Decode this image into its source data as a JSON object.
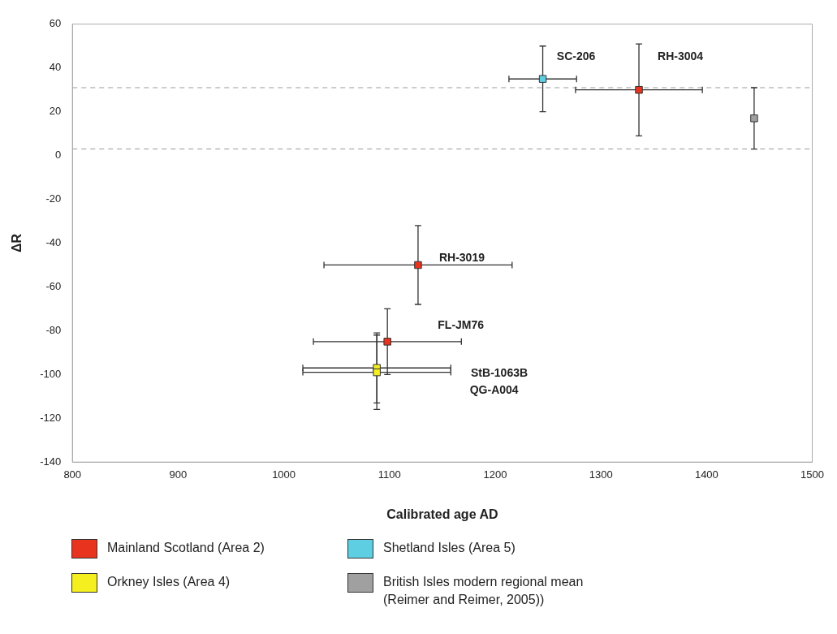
{
  "chart_data": {
    "type": "scatter",
    "xlabel": "Calibrated age AD",
    "ylabel": "ΔR",
    "xlim": [
      800,
      1500
    ],
    "xticks": [
      800,
      900,
      1000,
      1100,
      1200,
      1300,
      1400,
      1500
    ],
    "ylim": [
      -140,
      60
    ],
    "yticks": [
      -140,
      -120,
      -100,
      -80,
      -60,
      -40,
      -20,
      0,
      20,
      40,
      60
    ],
    "grid": false,
    "legend": "bottom",
    "marker": "square",
    "series": [
      {
        "name": "Mainland Scotland (Area 2)",
        "color": "#e8331f",
        "x": [
          1336,
          1127,
          1098
        ],
        "values": [
          30,
          -50,
          -85
        ],
        "errors": [
          21,
          18,
          15
        ],
        "xerrors": [
          60,
          89,
          70
        ]
      },
      {
        "name": "Shetland Isles (Area 5)",
        "color": "#5ecfe3",
        "x": [
          1245
        ],
        "values": [
          35
        ],
        "errors": [
          15
        ],
        "xerrors": [
          32
        ]
      },
      {
        "name": "Orkney Isles (Area 4)",
        "color": "#f5ef20",
        "x": [
          1088,
          1088
        ],
        "values": [
          -97,
          -99
        ],
        "errors": [
          16,
          17
        ],
        "xerrors": [
          70,
          70
        ]
      },
      {
        "name": "British Isles modern regional mean (Reimer and Reimer, 2005))",
        "color": "#a0a0a0",
        "x": [
          1445
        ],
        "values": [
          17
        ],
        "errors": [
          14
        ]
      }
    ],
    "ref_lines": [
      {
        "axis": "y",
        "value": 31,
        "color": "#999999",
        "line_style": "dashed"
      },
      {
        "axis": "y",
        "value": 3,
        "color": "#999999",
        "line_style": "dashed"
      }
    ],
    "annotations": [
      {
        "text": "SC-206",
        "x": 1245,
        "y": 35
      },
      {
        "text": "RH-3004",
        "x": 1336,
        "y": 30
      },
      {
        "text": "RH-3019",
        "x": 1127,
        "y": -50
      },
      "FL-JM76",
      "StB-1063B",
      "QG-A004"
    ]
  }
}
